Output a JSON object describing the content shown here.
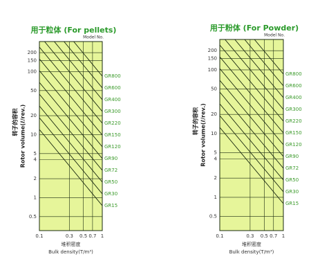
{
  "chart_data": [
    {
      "type": "nomogram",
      "title": "用于粒体 (For pellets)",
      "model_label": "Model No.",
      "x_label_cn": "堆积密度",
      "x_label": "Bulk density(T/m³)",
      "y_label_cn": "转子的容积",
      "y_label": "Rotor volume(ℓ/rev.)",
      "xscale": "log",
      "yscale": "log",
      "xlim": [
        0.1,
        1
      ],
      "xticks": [
        0.1,
        0.3,
        0.5,
        0.7,
        1
      ],
      "ylim": [
        0.3,
        300
      ],
      "yticks": [
        0.5,
        1,
        2,
        4,
        5,
        10,
        20,
        50,
        100,
        150,
        200
      ],
      "grid": true,
      "color": "#1a2a10",
      "model_color": "#3a9a2a",
      "categories": [
        "GR800",
        "GR600",
        "GR400",
        "GR300",
        "GR220",
        "GR150",
        "GR120",
        "GR90",
        "GR72",
        "GR50",
        "GR30",
        "GR15"
      ]
    },
    {
      "type": "nomogram",
      "title": "用于粉体 (For Powder)",
      "model_label": "Model No.",
      "x_label_cn": "堆积密度",
      "x_label": "Bulk density(T/m³)",
      "y_label_cn": "转子的容积",
      "y_label": "Rotor volume(ℓ/rev.)",
      "xscale": "log",
      "yscale": "log",
      "xlim": [
        0.1,
        1
      ],
      "xticks": [
        0.1,
        0.3,
        0.5,
        0.7,
        1
      ],
      "ylim": [
        0.3,
        300
      ],
      "yticks": [
        0.5,
        1,
        2,
        4,
        5,
        10,
        20,
        50,
        100,
        150,
        200
      ],
      "grid": true,
      "color": "#1a2a10",
      "model_color": "#3a9a2a",
      "categories": [
        "GR800",
        "GR600",
        "GR400",
        "GR300",
        "GR220",
        "GR150",
        "GR120",
        "GR90",
        "GR72",
        "GR50",
        "GR30",
        "GR15"
      ]
    }
  ]
}
